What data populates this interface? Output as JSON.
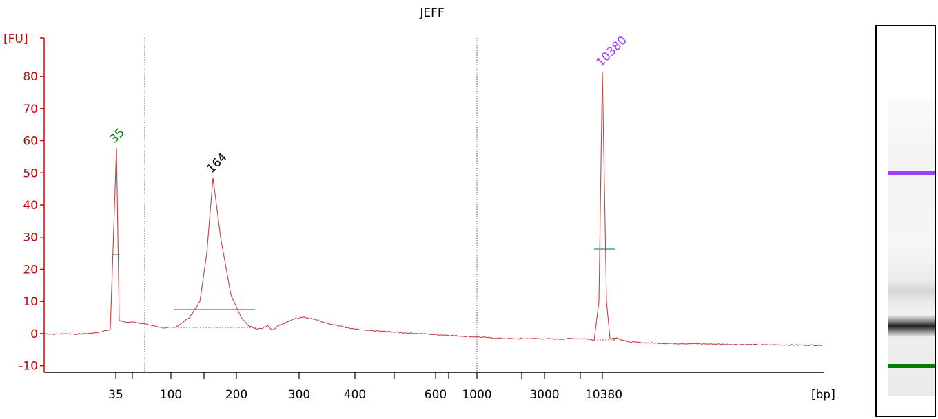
{
  "chart_data": {
    "type": "line",
    "title": "JEFF",
    "ylabel": "[FU]",
    "xlabel": "[bp]",
    "ylim": [
      -12,
      92
    ],
    "y_ticks": [
      -10,
      0,
      10,
      20,
      30,
      40,
      50,
      60,
      70,
      80
    ],
    "x_tick_labels": [
      "35",
      "100",
      "200",
      "300",
      "400",
      "600",
      "1000",
      "3000",
      "10380"
    ],
    "series": [
      {
        "values": [
          0,
          -0.2,
          0,
          -0.2,
          0,
          0.3,
          0.8,
          1.3,
          57.8,
          4,
          3.5,
          3.6,
          3,
          2.3,
          1.7,
          2,
          5,
          10,
          25,
          48.5,
          30,
          12,
          5,
          2.5,
          1.6,
          1.5,
          2.5,
          1.2,
          2.5,
          4.5,
          5.2,
          4.5,
          3.5,
          2.5,
          1.5,
          1,
          0.8,
          0.5,
          0.2,
          0,
          -0.3,
          -0.5,
          -0.8,
          -1,
          -1.3,
          -1.5,
          -1.6,
          -1.5,
          -1.6,
          -1.7,
          -1.5,
          -1.6,
          -2,
          10,
          81.6,
          10,
          -1.5,
          -1.3,
          -2.5,
          -2.8,
          -3,
          -3.1,
          -3.2,
          -3.3,
          -3.4,
          -3.5,
          -3.5,
          -3.6,
          -3.6
        ]
      }
    ],
    "peaks": [
      {
        "label": "35",
        "value": 57.8,
        "color": "#008000"
      },
      {
        "label": "164",
        "value": 48.5,
        "color": "#000000"
      },
      {
        "label": "10380",
        "value": 81.6,
        "color": "#a040ff"
      }
    ]
  }
}
